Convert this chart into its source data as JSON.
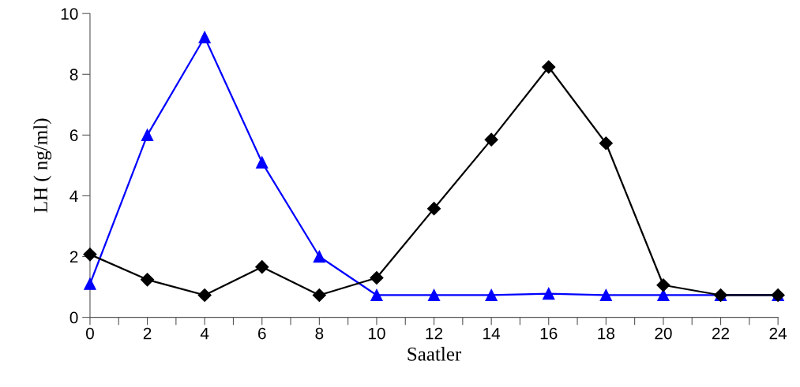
{
  "chart_data": {
    "type": "line",
    "xlabel": "Saatler",
    "ylabel": "LH ( ng/ml)",
    "x": [
      0,
      2,
      4,
      6,
      8,
      10,
      12,
      14,
      16,
      18,
      20,
      22,
      24
    ],
    "series": [
      {
        "color": "#000000",
        "marker": "diamond",
        "values": [
          2.07,
          1.24,
          0.73,
          1.66,
          0.73,
          1.3,
          3.58,
          5.85,
          8.24,
          5.73,
          1.06,
          0.73,
          0.73
        ]
      },
      {
        "color": "#0000ff",
        "marker": "triangle",
        "values": [
          1.1,
          6.0,
          9.22,
          5.1,
          2.0,
          0.73,
          0.73,
          0.73,
          0.78,
          0.73,
          0.73,
          0.73,
          0.73
        ]
      }
    ],
    "xlim": [
      0,
      24
    ],
    "xticks": [
      0,
      {
        "value": 1,
        "label": null
      },
      2,
      {
        "value": 3,
        "label": null
      },
      4,
      {
        "value": 5,
        "label": null
      },
      6,
      {
        "value": 7,
        "label": null
      },
      8,
      {
        "value": 9,
        "label": null
      },
      10,
      {
        "value": 11,
        "label": null
      },
      12,
      {
        "value": 13,
        "label": null
      },
      14,
      {
        "value": 15,
        "label": null
      },
      16,
      {
        "value": 17,
        "label": null
      },
      18,
      {
        "value": 19,
        "label": null
      },
      20,
      {
        "value": 21,
        "label": null
      },
      22,
      {
        "value": 23,
        "label": null
      },
      24
    ],
    "ylim": [
      0,
      10
    ],
    "yticks": [
      0,
      2,
      4,
      6,
      8,
      10
    ],
    "grid": false,
    "legend": false
  }
}
